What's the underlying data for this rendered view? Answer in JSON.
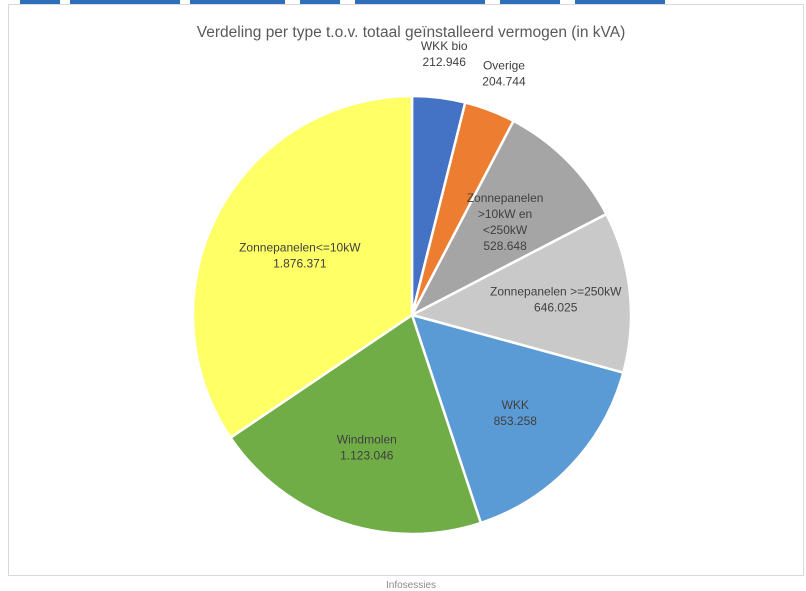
{
  "colors": {
    "bar": "#2f6fb8",
    "border": "#d9d9d9",
    "title": "#595959",
    "label": "#404040"
  },
  "chart_data": {
    "type": "pie",
    "title": "Verdeling per type t.o.v. totaal geïnstalleerd vermogen (in kVA)",
    "unit": "kVA",
    "slices": [
      {
        "label": "WKK bio",
        "value": 212946,
        "display": "212.946",
        "color": "#4472c4"
      },
      {
        "label": "Overige",
        "value": 204744,
        "display": "204.744",
        "color": "#ed7d31"
      },
      {
        "label": "Zonnepanelen >10kW en <250kW",
        "value": 528648,
        "display": "528.648",
        "color": "#a5a5a5"
      },
      {
        "label": "Zonnepanelen >=250kW",
        "value": 646025,
        "display": "646.025",
        "color": "#c9c9c9"
      },
      {
        "label": "WKK",
        "value": 853258,
        "display": "853.258",
        "color": "#5b9bd5"
      },
      {
        "label": "Windmolen",
        "value": 1123046,
        "display": "1.123.046",
        "color": "#70ad47"
      },
      {
        "label": "Zonnepanelen<=10kW",
        "value": 1876371,
        "display": "1.876.371",
        "color": "#ffff66"
      }
    ]
  },
  "footer": {
    "text": "Infosessies"
  }
}
